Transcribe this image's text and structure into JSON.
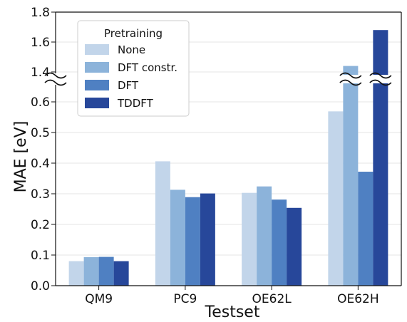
{
  "chart_data": {
    "type": "bar",
    "xlabel": "Testset",
    "ylabel": "MAE [eV]",
    "categories": [
      "QM9",
      "PC9",
      "OE62L",
      "OE62H"
    ],
    "legend_title": "Pretraining",
    "legend_position": "top-left",
    "y_axis_break": {
      "lower_range": [
        0,
        0.65
      ],
      "upper_range": [
        1.35,
        1.8
      ],
      "lower_ticks": [
        "0.0",
        "0.1",
        "0.2",
        "0.3",
        "0.4",
        "0.5",
        "0.6"
      ],
      "upper_ticks": [
        "1.4",
        "1.6",
        "1.8"
      ]
    },
    "grid": "horizontal",
    "series": [
      {
        "name": "None",
        "color": "#c2d5ea",
        "values": [
          0.08,
          0.406,
          0.303,
          0.569
        ]
      },
      {
        "name": "DFT constr.",
        "color": "#8cb3da",
        "values": [
          0.093,
          0.313,
          0.324,
          1.44
        ]
      },
      {
        "name": "DFT",
        "color": "#4f80c2",
        "values": [
          0.094,
          0.289,
          0.281,
          0.372
        ]
      },
      {
        "name": "TDDFT",
        "color": "#27479a",
        "values": [
          0.08,
          0.301,
          0.254,
          1.68
        ]
      }
    ]
  }
}
